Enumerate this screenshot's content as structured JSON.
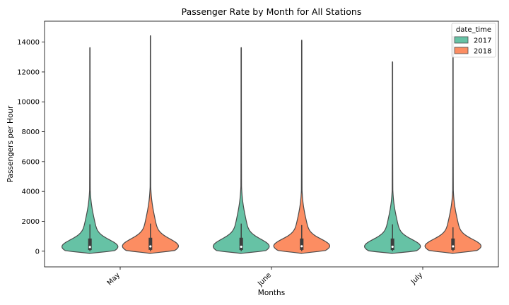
{
  "chart_data": {
    "type": "violin",
    "title": "Passenger Rate by Month for All Stations",
    "xlabel": "Months",
    "ylabel": "Passengers per Hour",
    "categories": [
      "May",
      "June",
      "July"
    ],
    "ylim": [
      -1050,
      15400
    ],
    "yticks": [
      0,
      2000,
      4000,
      6000,
      8000,
      10000,
      12000,
      14000
    ],
    "legend": {
      "title": "date_time",
      "placement": "top-right"
    },
    "series": [
      {
        "name": "2017",
        "color": "#66c2a5",
        "violins": [
          {
            "min": -150,
            "max": 13650,
            "q1": 80,
            "median": 280,
            "q3": 850,
            "wmin": 0,
            "wmax": 1800
          },
          {
            "min": -150,
            "max": 13650,
            "q1": 80,
            "median": 300,
            "q3": 900,
            "wmin": 0,
            "wmax": 1850
          },
          {
            "min": -150,
            "max": 12700,
            "q1": 80,
            "median": 300,
            "q3": 850,
            "wmin": 0,
            "wmax": 1800
          }
        ]
      },
      {
        "name": "2018",
        "color": "#fc8d62",
        "violins": [
          {
            "min": -150,
            "max": 14450,
            "q1": 90,
            "median": 320,
            "q3": 900,
            "wmin": 0,
            "wmax": 1850
          },
          {
            "min": -150,
            "max": 14150,
            "q1": 90,
            "median": 330,
            "q3": 850,
            "wmin": 0,
            "wmax": 1750
          },
          {
            "min": -150,
            "max": 14400,
            "q1": 90,
            "median": 320,
            "q3": 850,
            "wmin": 0,
            "wmax": 1600
          }
        ]
      }
    ]
  }
}
